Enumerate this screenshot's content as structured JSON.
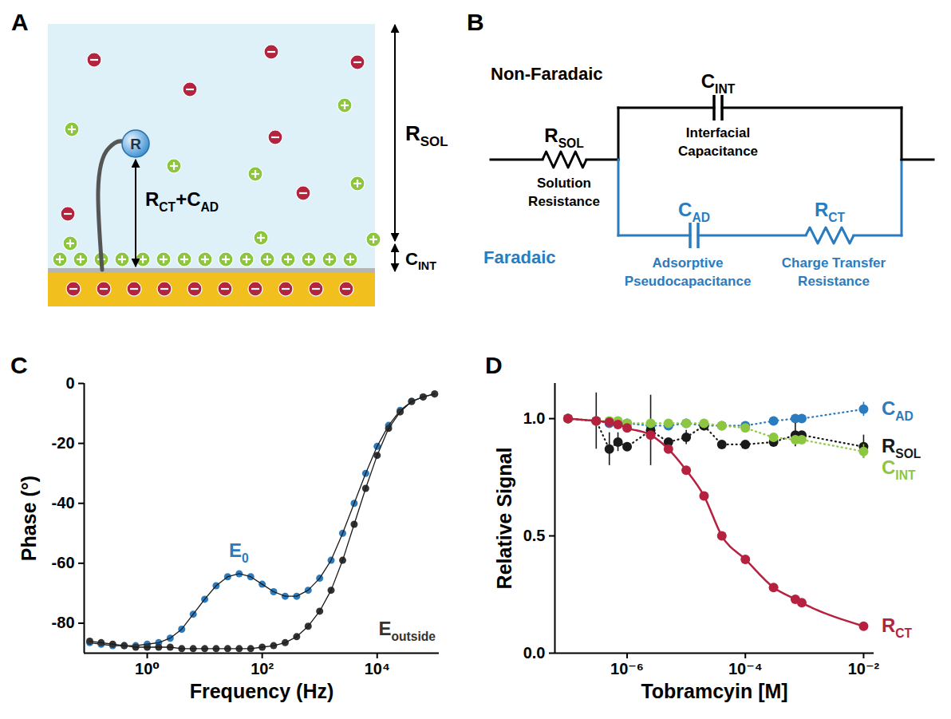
{
  "diagrams": [
    {
      "panel": "A",
      "labels": {
        "redox_reporter": "R",
        "probe": [
          {
            "text": "R",
            "sub": "CT"
          },
          {
            "text": "+C",
            "sub": "AD"
          }
        ],
        "solution_resistance": [
          {
            "text": "R",
            "sub": "SOL"
          }
        ],
        "interfacial_capacitance": [
          {
            "text": "C",
            "sub": "INT"
          }
        ]
      }
    },
    {
      "panel": "B",
      "non_faradaic": "Non-Faradaic",
      "faradaic": "Faradaic",
      "components": {
        "solution_resistance": {
          "label": [
            {
              "text": "R",
              "sub": "SOL"
            }
          ],
          "description": "Solution Resistance"
        },
        "interfacial_capacitance": {
          "label": [
            {
              "text": "C",
              "sub": "INT"
            }
          ],
          "description": "Interfacial Capacitance"
        },
        "adsorptive_pseudocapacitance": {
          "label": [
            {
              "text": "C",
              "sub": "AD"
            }
          ],
          "description": "Adsorptive Pseudocapacitance"
        },
        "charge_transfer_resistance": {
          "label": [
            {
              "text": "R",
              "sub": "CT"
            }
          ],
          "description": "Charge Transfer Resistance"
        }
      }
    }
  ],
  "chart_data": [
    {
      "panel": "C",
      "type": "line",
      "log": "x",
      "x_label": "Frequency (Hz)",
      "y_label": "Phase (°)",
      "x": [
        0.1,
        0.158,
        0.251,
        0.398,
        0.631,
        1,
        1.58,
        2.51,
        3.98,
        6.31,
        10,
        15.8,
        25.1,
        39.8,
        63.1,
        100,
        158,
        251,
        398,
        631,
        1000,
        1580,
        2510,
        3980,
        6310,
        10000,
        15800,
        25100,
        39800,
        63100,
        100000
      ],
      "series": [
        {
          "name": [
            {
              "text": "E",
              "sub": "0"
            }
          ],
          "color": "#2b7bbf",
          "marker": "circle",
          "values": [
            -86.5,
            -87,
            -87.5,
            -87.5,
            -87.5,
            -87,
            -86.5,
            -85,
            -82,
            -77,
            -72,
            -67.5,
            -64.5,
            -63.5,
            -64.5,
            -67,
            -69.5,
            -71,
            -71,
            -69,
            -65,
            -59,
            -50,
            -40,
            -30,
            -21,
            -14,
            -9,
            -6,
            -4.5,
            -3.5
          ]
        },
        {
          "name": [
            {
              "text": "E",
              "sub": "outside"
            }
          ],
          "color": "#333333",
          "marker": "circle",
          "values": [
            -86,
            -86.5,
            -87,
            -87.5,
            -88,
            -88,
            -88,
            -88,
            -88.5,
            -88.5,
            -88.5,
            -88.5,
            -88.5,
            -88.5,
            -88.5,
            -88,
            -87.5,
            -86.5,
            -84.5,
            -81,
            -76,
            -69,
            -59,
            -47,
            -35,
            -24,
            -15,
            -9.5,
            -6,
            -4.5,
            -3.5
          ]
        }
      ],
      "xlim": [
        0.08,
        120000
      ],
      "xticks": [
        {
          "value": 1,
          "label": "10⁰"
        },
        {
          "value": 100,
          "label": "10²"
        },
        {
          "value": 10000,
          "label": "10⁴"
        }
      ],
      "ylim": [
        -90,
        0
      ],
      "yticks": [
        -80,
        -60,
        -40,
        -20,
        0
      ]
    },
    {
      "panel": "D",
      "type": "line",
      "log": "x",
      "x_label": "Tobramcyin [M]",
      "y_label": "Relative Signal",
      "x": [
        1e-07,
        3e-07,
        5e-07,
        7e-07,
        1e-06,
        2.5e-06,
        5e-06,
        1e-05,
        2e-05,
        4e-05,
        0.0001,
        0.0003,
        0.0007,
        0.0009,
        0.01
      ],
      "series": [
        {
          "name": [
            {
              "text": "C",
              "sub": "AD"
            }
          ],
          "color": "#2b7bbf",
          "marker": "circle",
          "line_style": "dotted",
          "values": [
            1.0,
            0.99,
            0.98,
            0.98,
            0.98,
            0.97,
            0.97,
            0.98,
            0.97,
            0.97,
            0.97,
            0.99,
            1.0,
            1.0,
            1.04
          ],
          "errors": [
            null,
            null,
            null,
            null,
            null,
            null,
            null,
            null,
            null,
            null,
            null,
            null,
            null,
            null,
            0.03
          ]
        },
        {
          "name": [
            {
              "text": "R",
              "sub": "SOL"
            }
          ],
          "color": "#1a1a1a",
          "marker": "circle",
          "line_style": "dotted",
          "values": [
            1.0,
            0.99,
            0.87,
            0.9,
            0.88,
            0.95,
            0.9,
            0.92,
            0.97,
            0.89,
            0.89,
            0.9,
            0.93,
            0.93,
            0.88
          ],
          "errors": [
            null,
            0.12,
            0.07,
            0.04,
            null,
            0.15,
            null,
            0.03,
            null,
            null,
            null,
            null,
            0.05,
            null,
            0.05
          ]
        },
        {
          "name": [
            {
              "text": "C",
              "sub": "INT"
            }
          ],
          "color": "#8dc63f",
          "marker": "circle",
          "line_style": "dotted",
          "values": [
            1.0,
            0.99,
            0.99,
            0.99,
            0.98,
            0.98,
            0.98,
            0.98,
            0.98,
            0.97,
            0.96,
            0.92,
            0.91,
            0.91,
            0.86
          ],
          "errors": [
            null,
            null,
            null,
            null,
            null,
            null,
            null,
            null,
            null,
            null,
            null,
            null,
            null,
            null,
            0.03
          ]
        },
        {
          "name": [
            {
              "text": "R",
              "sub": "CT"
            }
          ],
          "color": "#b5213f",
          "marker": "circle",
          "line_style": "solid",
          "values": [
            1.0,
            0.99,
            0.985,
            0.975,
            0.96,
            0.93,
            0.87,
            0.78,
            0.67,
            0.5,
            0.4,
            0.28,
            0.23,
            0.215,
            0.115
          ]
        }
      ],
      "xlim": [
        6e-08,
        0.015
      ],
      "xticks": [
        {
          "value": 1e-06,
          "label": "10⁻⁶"
        },
        {
          "value": 0.0001,
          "label": "10⁻⁴"
        },
        {
          "value": 0.01,
          "label": "10⁻²"
        }
      ],
      "ylim": [
        0,
        1.15
      ],
      "yticks": [
        {
          "value": 0,
          "label": "0.0"
        },
        0.5,
        {
          "value": 1,
          "label": "1.0"
        }
      ]
    }
  ]
}
